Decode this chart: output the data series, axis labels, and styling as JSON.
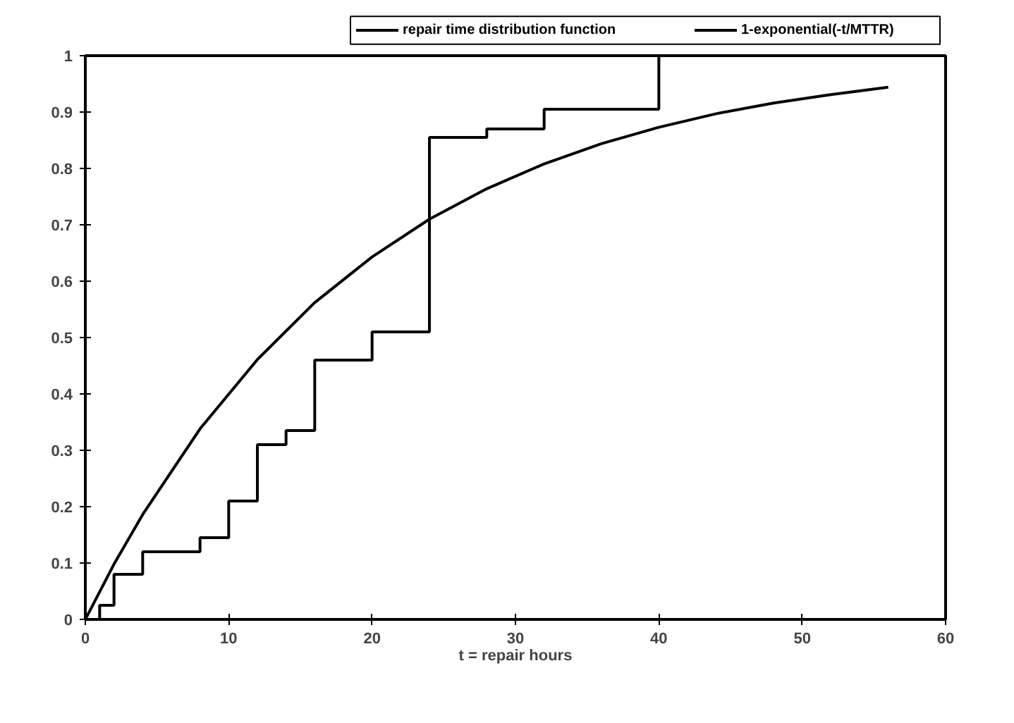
{
  "chart_data": {
    "type": "line",
    "xlabel": "t = repair hours",
    "xlim": [
      0,
      60
    ],
    "xticks": [
      0,
      10,
      20,
      30,
      40,
      50,
      60
    ],
    "ylim": [
      0,
      1
    ],
    "yticks": [
      0,
      0.1,
      0.2,
      0.3,
      0.4,
      0.5,
      0.6,
      0.7,
      0.8,
      0.9,
      1
    ],
    "grid": false,
    "legend": "top right",
    "series": [
      {
        "name": "repair time distribution function",
        "type": "step",
        "color": "#000000",
        "x": [
          0,
          1,
          2,
          4,
          8,
          10,
          12,
          14,
          16,
          20,
          24,
          28,
          32,
          40,
          56
        ],
        "values": [
          0,
          0.025,
          0.08,
          0.12,
          0.145,
          0.21,
          0.31,
          0.335,
          0.46,
          0.51,
          0.855,
          0.87,
          0.905,
          1.0,
          1.0
        ]
      },
      {
        "name": "1-exponential(-t/MTTR)",
        "type": "line",
        "color": "#000000",
        "x": [
          0,
          2,
          4,
          8,
          12,
          16,
          20,
          24,
          28,
          32,
          36,
          40,
          44,
          48,
          52,
          56
        ],
        "values": [
          0,
          0.098,
          0.186,
          0.338,
          0.461,
          0.562,
          0.643,
          0.71,
          0.764,
          0.808,
          0.844,
          0.873,
          0.897,
          0.916,
          0.931,
          0.944
        ]
      }
    ]
  }
}
